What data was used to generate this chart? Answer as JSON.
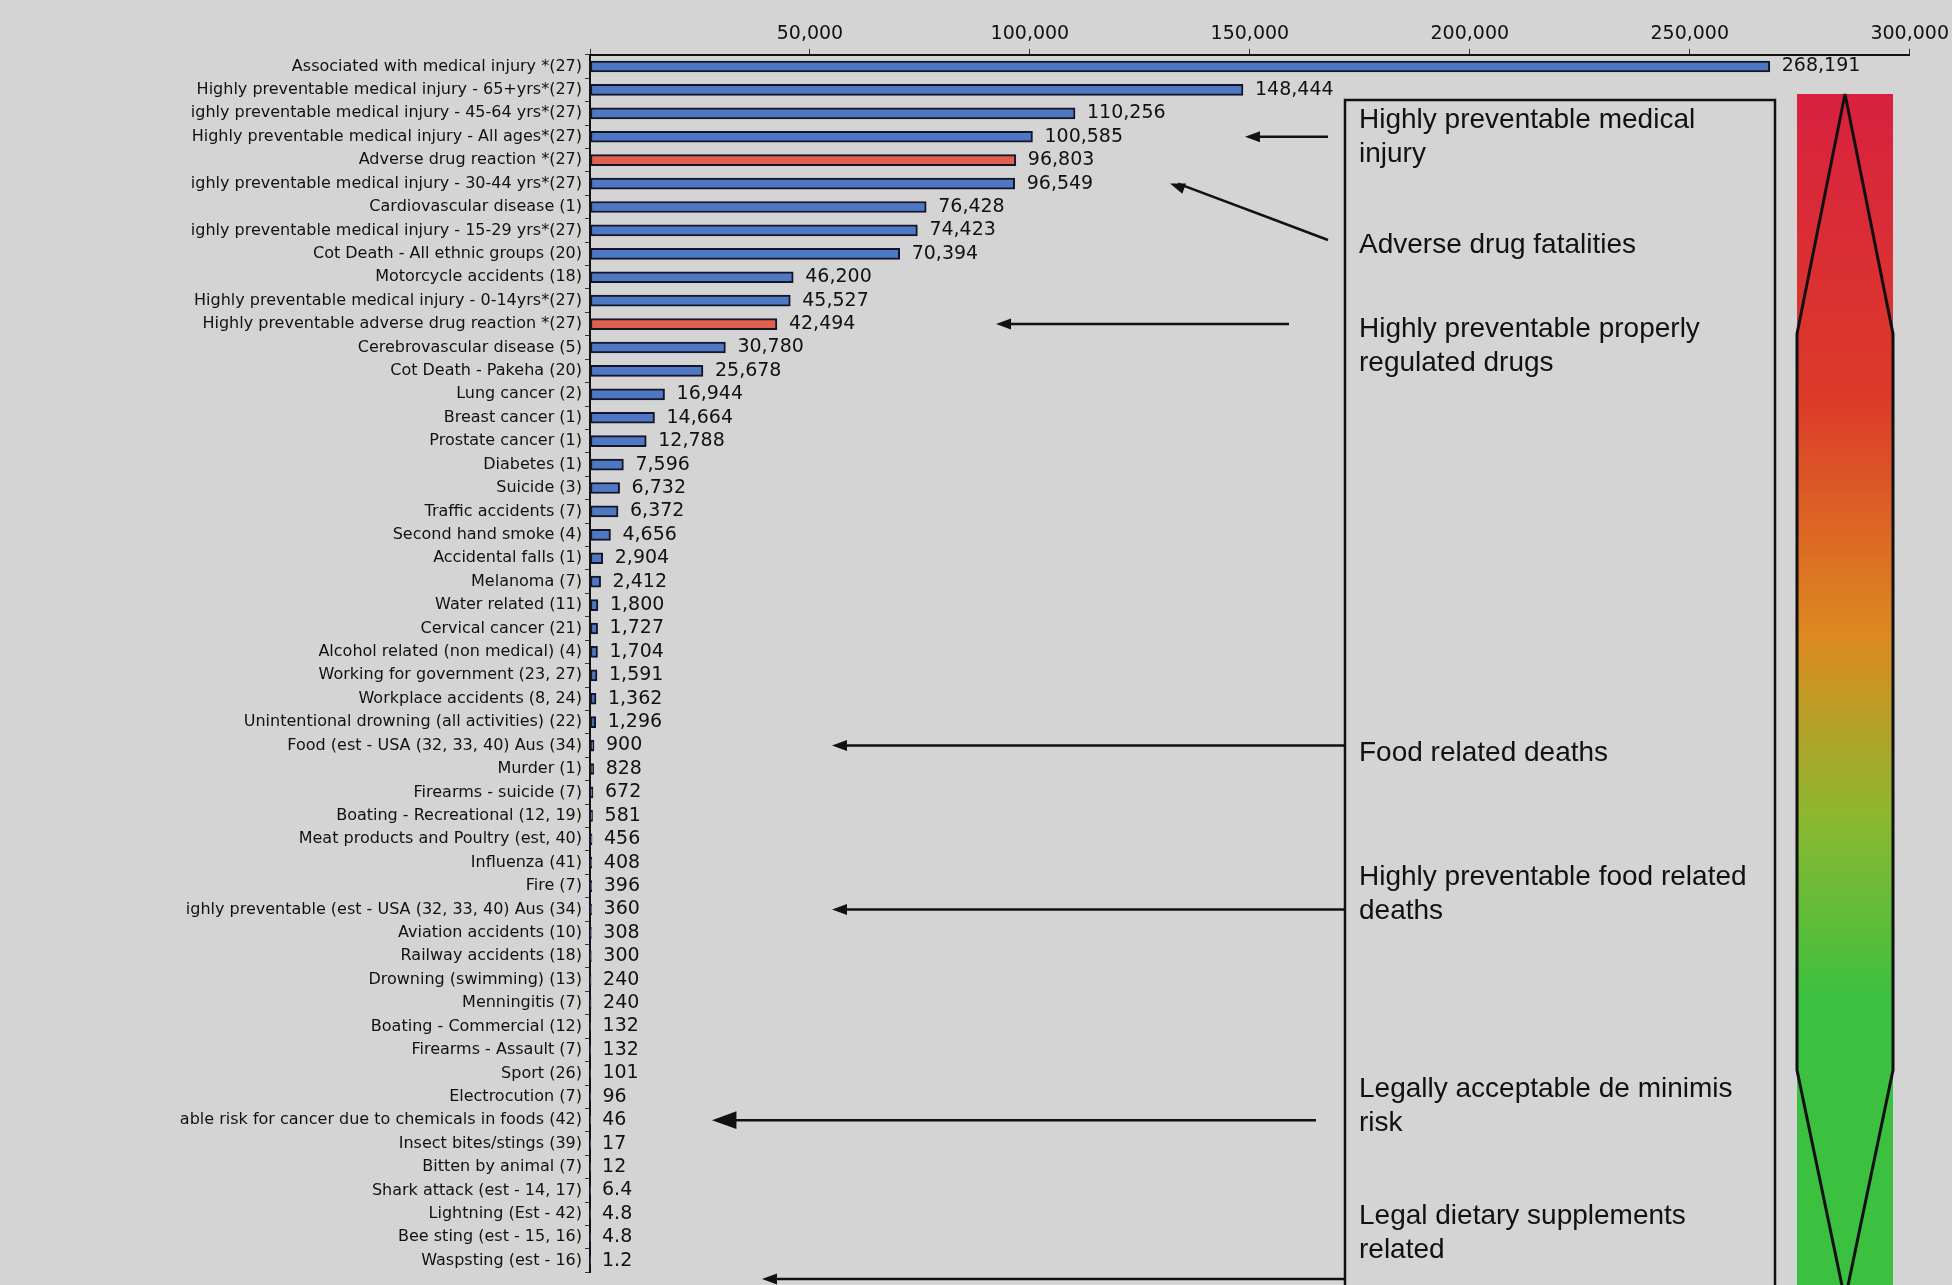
{
  "chart_data": {
    "type": "bar",
    "orientation": "horizontal",
    "categories": [
      "Associated with medical injury *(27)",
      "Highly preventable medical injury - 65+yrs*(27)",
      "ighly preventable medical injury - 45-64 yrs*(27)",
      "Highly preventable medical injury - All ages*(27)",
      "Adverse drug reaction *(27)",
      "ighly preventable medical injury - 30-44 yrs*(27)",
      "Cardiovascular disease (1)",
      "ighly preventable medical injury - 15-29 yrs*(27)",
      "Cot Death - All ethnic groups (20)",
      "Motorcycle accidents (18)",
      "Highly preventable medical injury - 0-14yrs*(27)",
      "Highly preventable adverse drug reaction *(27)",
      "Cerebrovascular disease (5)",
      "Cot Death - Pakeha (20)",
      "Lung cancer (2)",
      "Breast cancer (1)",
      "Prostate cancer (1)",
      "Diabetes (1)",
      "Suicide (3)",
      "Traffic accidents (7)",
      "Second hand smoke (4)",
      "Accidental falls (1)",
      "Melanoma (7)",
      "Water related (11)",
      "Cervical cancer (21)",
      "Alcohol related (non medical) (4)",
      "Working for government (23, 27)",
      "Workplace accidents (8, 24)",
      "Unintentional drowning (all activities) (22)",
      "Food (est - USA (32, 33, 40) Aus (34)",
      "Murder (1)",
      "Firearms - suicide (7)",
      "Boating - Recreational (12, 19)",
      "Meat products and Poultry (est, 40)",
      "Influenza (41)",
      "Fire (7)",
      "ighly preventable (est - USA (32, 33, 40) Aus (34)",
      "Aviation accidents (10)",
      "Railway accidents (18)",
      "Drowning (swimming) (13)",
      "Menningitis (7)",
      "Boating - Commercial (12)",
      "Firearms - Assault (7)",
      "Sport (26)",
      "Electrocution (7)",
      "able risk for cancer due to chemicals in foods (42)",
      "Insect bites/stings (39)",
      "Bitten by animal (7)",
      "Shark attack (est - 14, 17)",
      "Lightning (Est - 42)",
      "Bee sting (est - 15, 16)",
      "Waspsting (est - 16)"
    ],
    "values": [
      268191,
      148444,
      110256,
      100585,
      96803,
      96549,
      76428,
      74423,
      70394,
      46200,
      45527,
      42494,
      30780,
      25678,
      16944,
      14664,
      12788,
      7596,
      6732,
      6372,
      4656,
      2904,
      2412,
      1800,
      1727,
      1704,
      1591,
      1362,
      1296,
      900,
      828,
      672,
      581,
      456,
      408,
      396,
      360,
      308,
      300,
      240,
      240,
      132,
      132,
      101,
      96,
      46,
      17,
      12,
      6.4,
      4.8,
      4.8,
      1.2
    ],
    "colors": [
      "#4f78c4",
      "#4f78c4",
      "#4f78c4",
      "#4f78c4",
      "#e0604e",
      "#4f78c4",
      "#4f78c4",
      "#4f78c4",
      "#4f78c4",
      "#4f78c4",
      "#4f78c4",
      "#e0604e",
      "#4f78c4",
      "#4f78c4",
      "#4f78c4",
      "#4f78c4",
      "#4f78c4",
      "#4f78c4",
      "#4f78c4",
      "#4f78c4",
      "#4f78c4",
      "#4f78c4",
      "#4f78c4",
      "#4f78c4",
      "#4f78c4",
      "#4f78c4",
      "#4f78c4",
      "#4f78c4",
      "#4f78c4",
      "#4f78c4",
      "#4f78c4",
      "#4f78c4",
      "#4f78c4",
      "#4f78c4",
      "#4f78c4",
      "#4f78c4",
      "#4f78c4",
      "#4f78c4",
      "#4f78c4",
      "#4f78c4",
      "#4f78c4",
      "#4f78c4",
      "#4f78c4",
      "#4f78c4",
      "#4f78c4",
      "#4f78c4",
      "#4f78c4",
      "#4f78c4",
      "#4f78c4",
      "#4f78c4",
      "#4f78c4",
      "#4f78c4"
    ],
    "xlim": [
      0,
      300000
    ],
    "xticks": [
      {
        "value": 0,
        "label": null
      },
      {
        "value": 50000,
        "label": "50,000"
      },
      {
        "value": 100000,
        "label": "100,000"
      },
      {
        "value": 150000,
        "label": "150,000"
      },
      {
        "value": 200000,
        "label": "200,000"
      },
      {
        "value": 250000,
        "label": "250,000"
      },
      {
        "value": 300000,
        "label": "300,000"
      }
    ],
    "value_labels": [
      "268,191",
      "148,444",
      "110,256",
      "100,585",
      "96,803",
      "96,549",
      "76,428",
      "74,423",
      "70,394",
      "46,200",
      "45,527",
      "42,494",
      "30,780",
      "25,678",
      "16,944",
      "14,664",
      "12,788",
      "7,596",
      "6,732",
      "6,372",
      "4,656",
      "2,904",
      "2,412",
      "1,800",
      "1,727",
      "1,704",
      "1,591",
      "1,362",
      "1,296",
      "900",
      "828",
      "672",
      "581",
      "456",
      "408",
      "396",
      "360",
      "308",
      "300",
      "240",
      "240",
      "132",
      "132",
      "101",
      "96",
      "46",
      "17",
      "12",
      "6.4",
      "4.8",
      "4.8",
      "1.2"
    ],
    "legend": false,
    "grid": false,
    "annotations": [
      "Highly preventable medical injury",
      "Adverse drug fatalities",
      "Highly preventable properly regulated drugs",
      "Food related deaths",
      "Highly preventable food related deaths",
      "Legally acceptable de minimis risk",
      "Legal dietary supplements related"
    ]
  }
}
